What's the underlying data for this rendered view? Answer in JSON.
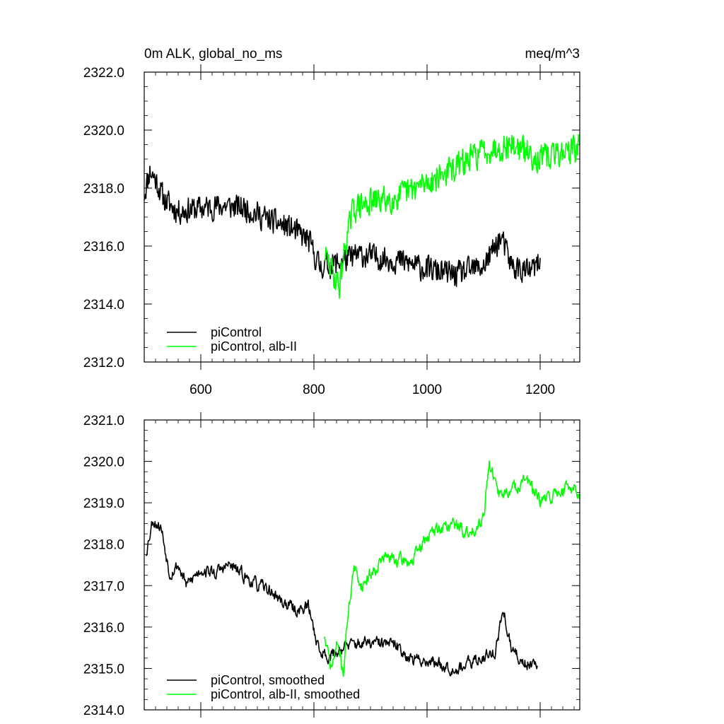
{
  "chart_data": [
    {
      "type": "line",
      "title_left": "0m ALK, global_no_ms",
      "title_right": "meq/m^3",
      "xlim": [
        500,
        1270
      ],
      "ylim": [
        2312.0,
        2322.0
      ],
      "xticks": [
        600,
        800,
        1000,
        1200
      ],
      "xtick_labels": [
        "600",
        "800",
        "1000",
        "1200"
      ],
      "yticks": [
        2312.0,
        2314.0,
        2316.0,
        2318.0,
        2320.0,
        2322.0
      ],
      "ytick_labels": [
        "2312.0",
        "2314.0",
        "2316.0",
        "2318.0",
        "2320.0",
        "2322.0"
      ],
      "series": [
        {
          "name": "piControl",
          "color": "#000000",
          "noise": 0.55,
          "seed": 11,
          "x": [
            500,
            510,
            520,
            535,
            560,
            600,
            640,
            680,
            720,
            760,
            790,
            810,
            840,
            880,
            950,
            1000,
            1050,
            1100,
            1130,
            1150,
            1180,
            1200
          ],
          "y": [
            2317.8,
            2318.6,
            2318.3,
            2317.6,
            2317.2,
            2317.3,
            2317.4,
            2317.3,
            2316.9,
            2316.6,
            2316.2,
            2315.3,
            2315.4,
            2315.7,
            2315.5,
            2315.2,
            2315.0,
            2315.3,
            2316.3,
            2315.3,
            2315.1,
            2315.4
          ]
        },
        {
          "name": "piControl, alb-II",
          "color": "#00ff00",
          "noise": 0.6,
          "seed": 29,
          "x": [
            820,
            835,
            845,
            855,
            870,
            900,
            950,
            1000,
            1050,
            1100,
            1150,
            1200,
            1250,
            1270
          ],
          "y": [
            2315.7,
            2315.0,
            2314.6,
            2316.0,
            2317.3,
            2317.5,
            2317.7,
            2318.2,
            2318.7,
            2319.3,
            2319.5,
            2319.0,
            2319.3,
            2319.4
          ]
        }
      ],
      "legend": [
        "piControl",
        "piControl, alb-II"
      ]
    },
    {
      "type": "line",
      "xlim": [
        500,
        1270
      ],
      "ylim": [
        2314.0,
        2321.0
      ],
      "xticks": [
        600,
        800,
        1000,
        1200
      ],
      "yticks": [
        2314.0,
        2315.0,
        2316.0,
        2317.0,
        2318.0,
        2319.0,
        2320.0,
        2321.0
      ],
      "ytick_labels": [
        "2314.0",
        "2315.0",
        "2316.0",
        "2317.0",
        "2318.0",
        "2319.0",
        "2320.0",
        "2321.0"
      ],
      "series": [
        {
          "name": "piControl, smoothed",
          "color": "#000000",
          "noise": 0.28,
          "seed": 53,
          "x": [
            503,
            515,
            530,
            545,
            560,
            575,
            600,
            625,
            650,
            680,
            700,
            720,
            745,
            770,
            790,
            810,
            830,
            850,
            875,
            900,
            930,
            950,
            975,
            1000,
            1025,
            1050,
            1075,
            1100,
            1120,
            1135,
            1150,
            1175,
            1195
          ],
          "y": [
            2317.8,
            2318.6,
            2318.4,
            2317.3,
            2317.5,
            2317.0,
            2317.4,
            2317.3,
            2317.5,
            2317.2,
            2317.0,
            2316.9,
            2316.6,
            2316.4,
            2316.5,
            2315.4,
            2315.3,
            2315.5,
            2315.6,
            2315.6,
            2315.6,
            2315.5,
            2315.2,
            2315.2,
            2315.1,
            2315.0,
            2315.1,
            2315.3,
            2315.4,
            2316.4,
            2315.4,
            2315.1,
            2315.2
          ]
        },
        {
          "name": "piControl, alb-II, smoothed",
          "color": "#00ff00",
          "noise": 0.3,
          "seed": 71,
          "x": [
            818,
            830,
            842,
            852,
            860,
            870,
            885,
            900,
            925,
            950,
            975,
            1000,
            1025,
            1050,
            1075,
            1100,
            1110,
            1125,
            1150,
            1175,
            1200,
            1225,
            1250,
            1270
          ],
          "y": [
            2315.8,
            2315.0,
            2315.6,
            2314.9,
            2316.3,
            2317.4,
            2317.0,
            2317.3,
            2317.7,
            2317.6,
            2317.6,
            2318.2,
            2318.4,
            2318.5,
            2318.2,
            2318.7,
            2320.0,
            2319.2,
            2319.3,
            2319.6,
            2319.0,
            2319.2,
            2319.4,
            2319.3
          ]
        }
      ],
      "legend": [
        "piControl, smoothed",
        "piControl, alb-II, smoothed"
      ]
    }
  ]
}
